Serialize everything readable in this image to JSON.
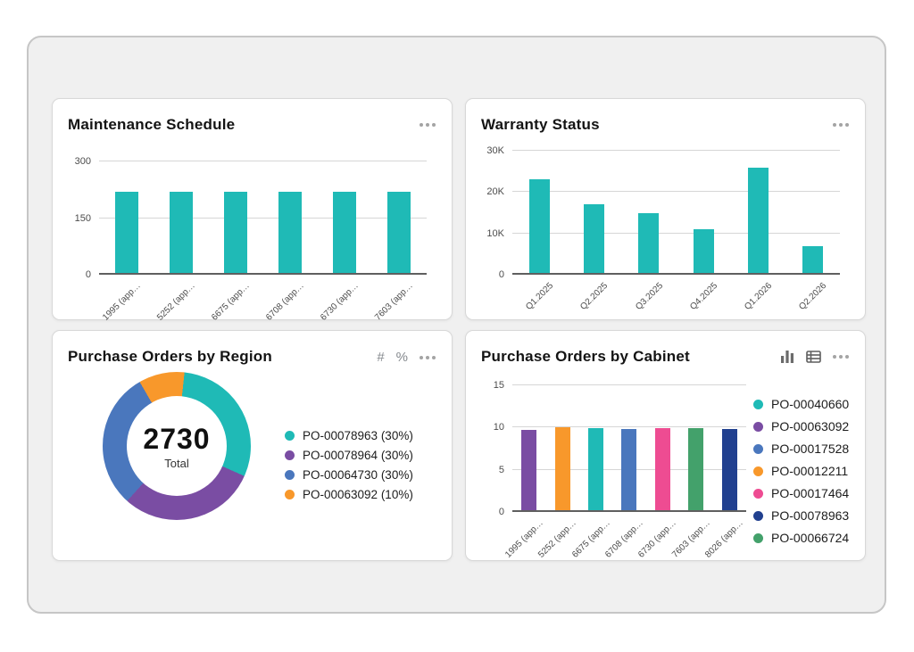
{
  "cards": [
    {
      "title": "Maintenance Schedule",
      "chart_data": {
        "type": "bar",
        "title": "Maintenance Schedule",
        "categories": [
          "1995 (app…",
          "5252 (app…",
          "6675 (app…",
          "6708 (app…",
          "6730 (app…",
          "7603 (app…"
        ],
        "values": [
          220,
          220,
          220,
          220,
          220,
          220
        ],
        "ylim": [
          0,
          300
        ],
        "yticks": [
          0,
          150,
          300
        ],
        "ytick_labels": [
          "0",
          "150",
          "300"
        ],
        "bar_color": "#1fbab6",
        "grid": "horizontal",
        "xlabel": "",
        "ylabel": ""
      }
    },
    {
      "title": "Warranty Status",
      "chart_data": {
        "type": "bar",
        "title": "Warranty Status",
        "categories": [
          "Q1.2025",
          "Q2.2025",
          "Q3.2025",
          "Q4.2025",
          "Q1.2026",
          "Q2.2026"
        ],
        "values": [
          23000,
          17000,
          15000,
          11000,
          26000,
          7000
        ],
        "ylim": [
          0,
          30000
        ],
        "yticks": [
          0,
          10000,
          20000,
          30000
        ],
        "ytick_labels": [
          "0",
          "10K",
          "20K",
          "30K"
        ],
        "bar_color": "#1fbab6",
        "grid": "horizontal",
        "xlabel": "",
        "ylabel": ""
      }
    },
    {
      "title": "Purchase Orders by Region",
      "actions": {
        "number_toggle": "#",
        "percent_toggle": "%"
      },
      "chart_data": {
        "type": "pie",
        "title": "Purchase Orders by Region",
        "donut": true,
        "start_angle_deg": 6,
        "segments": [
          {
            "label": "PO-00078963",
            "pct": 30,
            "color": "#1fbab6"
          },
          {
            "label": "PO-00078964",
            "pct": 30,
            "color": "#7a4da3"
          },
          {
            "label": "PO-00064730",
            "pct": 30,
            "color": "#4a77bd"
          },
          {
            "label": "PO-00063092",
            "pct": 10,
            "color": "#f8982b"
          }
        ],
        "center_value": "2730",
        "center_label": "Total",
        "legend_position": "right",
        "legend": [
          {
            "text": "PO-00078963 (30%)",
            "color": "#1fbab6"
          },
          {
            "text": "PO-00078964 (30%)",
            "color": "#7a4da3"
          },
          {
            "text": "PO-00064730 (30%)",
            "color": "#4a77bd"
          },
          {
            "text": "PO-00063092 (10%)",
            "color": "#f8982b"
          }
        ]
      }
    },
    {
      "title": "Purchase Orders by Cabinet",
      "chart_data": {
        "type": "bar",
        "title": "Purchase Orders by Cabinet",
        "categories": [
          "1995 (app…",
          "5252 (app…",
          "6675 (app…",
          "6708 (app…",
          "6730 (app…",
          "7603 (app…",
          "8026 (app…"
        ],
        "values": [
          9.7,
          10,
          9.9,
          9.85,
          9.9,
          9.9,
          9.85
        ],
        "bar_colors": [
          "#7a4da3",
          "#f8982b",
          "#1fbab6",
          "#4a77bd",
          "#ee4c92",
          "#43a16b",
          "#21408f"
        ],
        "ylim": [
          0,
          15
        ],
        "yticks": [
          0,
          5,
          10,
          15
        ],
        "ytick_labels": [
          "0",
          "5",
          "10",
          "15"
        ],
        "grid": "horizontal",
        "legend_position": "right",
        "legend": [
          {
            "text": "PO-00040660",
            "color": "#1fbab6"
          },
          {
            "text": "PO-00063092",
            "color": "#7a4da3"
          },
          {
            "text": "PO-00017528",
            "color": "#4a77bd"
          },
          {
            "text": "PO-00012211",
            "color": "#f8982b"
          },
          {
            "text": "PO-00017464",
            "color": "#ee4c92"
          },
          {
            "text": "PO-00078963",
            "color": "#21408f"
          },
          {
            "text": "PO-00066724",
            "color": "#43a16b"
          }
        ],
        "xlabel": "",
        "ylabel": ""
      }
    }
  ]
}
